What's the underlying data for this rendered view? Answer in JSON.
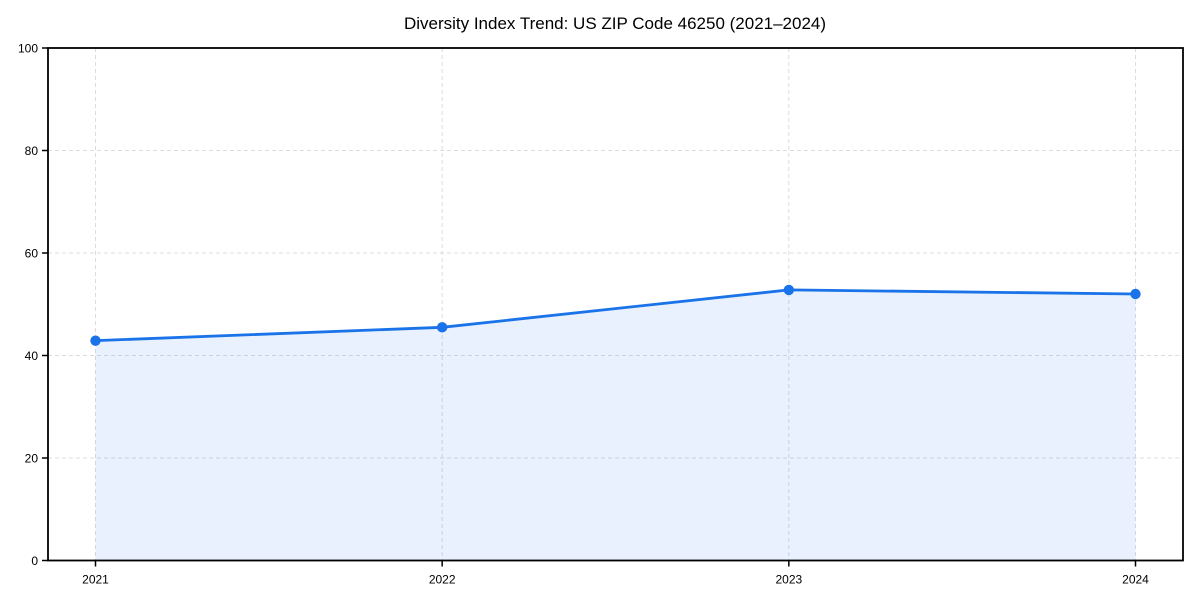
{
  "chart_data": {
    "type": "line",
    "title": "Diversity Index Trend: US ZIP Code 46250 (2021–2024)",
    "series_name": "Diversity Index",
    "categories": [
      "2021",
      "2022",
      "2023",
      "2024"
    ],
    "values": [
      42.9,
      45.5,
      52.8,
      52.0
    ],
    "xlabel": "",
    "ylabel": "",
    "ylim": [
      0,
      100
    ],
    "yticks": [
      0,
      20,
      40,
      60,
      80,
      100
    ],
    "grid": "dashed",
    "legend": "none",
    "area_fill": true,
    "markers": "circle",
    "colors": {
      "line": "#1a73e8",
      "marker": "#1a73e8",
      "fill": "#1a73e8",
      "fill_opacity": "0.10",
      "grid": "#dcdcdc",
      "axis": "#000000",
      "text": "#000000",
      "background": "#ffffff"
    }
  }
}
